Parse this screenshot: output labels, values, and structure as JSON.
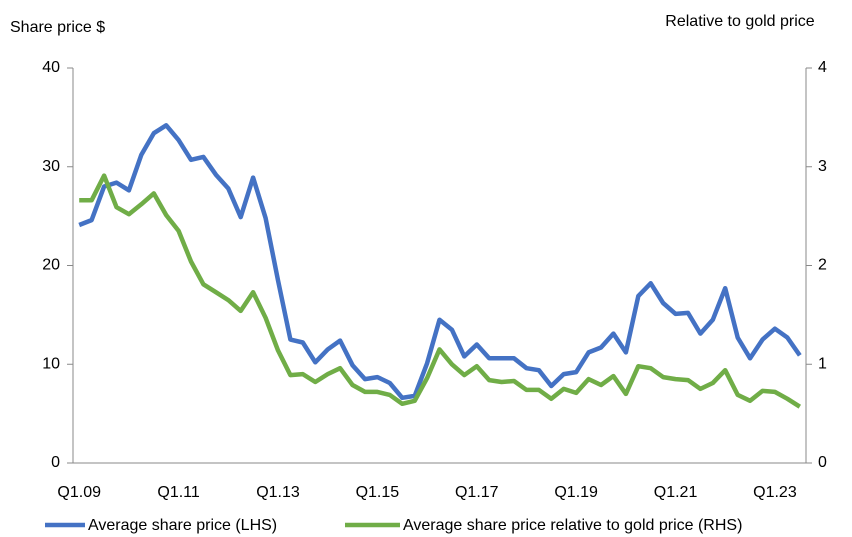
{
  "chart_data": {
    "type": "line",
    "y_label": "Share price $",
    "y2_label": "Relative to gold price",
    "categories": [
      "Q1.09",
      null,
      null,
      null,
      null,
      null,
      null,
      null,
      "Q1.11",
      null,
      null,
      null,
      null,
      null,
      null,
      null,
      "Q1.13",
      null,
      null,
      null,
      null,
      null,
      null,
      null,
      "Q1.15",
      null,
      null,
      null,
      null,
      null,
      null,
      null,
      "Q1.17",
      null,
      null,
      null,
      null,
      null,
      null,
      null,
      "Q1.19",
      null,
      null,
      null,
      null,
      null,
      null,
      null,
      "Q1.21",
      null,
      null,
      null,
      null,
      null,
      null,
      null,
      "Q1.23",
      null,
      null
    ],
    "series": [
      {
        "name": "Average share price (LHS)",
        "color": "#4472c4",
        "axis": "y",
        "values": [
          24.1,
          24.6,
          28.0,
          28.4,
          27.6,
          31.2,
          33.4,
          34.2,
          32.7,
          30.7,
          31.0,
          29.2,
          27.8,
          24.9,
          28.9,
          24.8,
          18.5,
          12.5,
          12.2,
          10.2,
          11.5,
          12.4,
          9.9,
          8.5,
          8.7,
          8.1,
          6.6,
          6.8,
          10.1,
          14.5,
          13.5,
          10.8,
          12.0,
          10.6,
          10.6,
          10.6,
          9.6,
          9.4,
          7.8,
          9.0,
          9.2,
          11.2,
          11.7,
          13.1,
          11.2,
          16.9,
          18.2,
          16.2,
          15.1,
          15.2,
          13.1,
          14.5,
          17.7,
          12.7,
          10.6,
          12.5,
          13.6,
          12.7,
          10.9
        ]
      },
      {
        "name": "Average share price relative to gold price (RHS)",
        "color": "#70ad47",
        "axis": "y2",
        "values": [
          2.66,
          2.66,
          2.91,
          2.59,
          2.52,
          2.62,
          2.73,
          2.51,
          2.35,
          2.04,
          1.81,
          1.73,
          1.65,
          1.54,
          1.73,
          1.47,
          1.14,
          0.89,
          0.9,
          0.82,
          0.9,
          0.96,
          0.79,
          0.72,
          0.72,
          0.69,
          0.6,
          0.63,
          0.86,
          1.15,
          1.0,
          0.89,
          0.98,
          0.84,
          0.82,
          0.83,
          0.74,
          0.74,
          0.65,
          0.75,
          0.71,
          0.85,
          0.79,
          0.88,
          0.7,
          0.98,
          0.96,
          0.87,
          0.85,
          0.84,
          0.75,
          0.81,
          0.94,
          0.69,
          0.63,
          0.73,
          0.72,
          0.65,
          0.57
        ]
      }
    ],
    "ylim": [
      0,
      40
    ],
    "yticks": [
      0,
      10,
      20,
      30,
      40
    ],
    "y2lim": [
      0,
      4
    ],
    "y2ticks": [
      0,
      1,
      2,
      3,
      4
    ],
    "legend": "bottom"
  }
}
